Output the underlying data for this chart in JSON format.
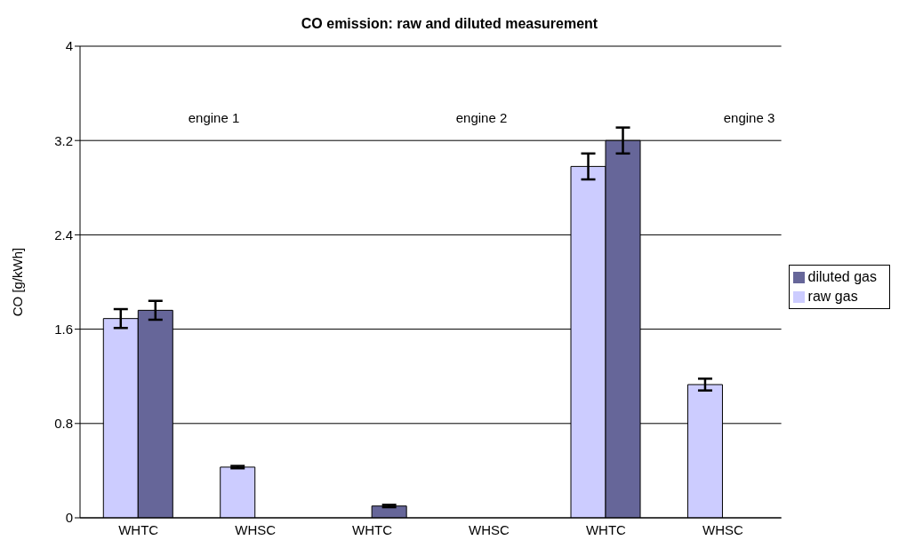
{
  "chart_data": {
    "type": "bar",
    "title": "CO emission: raw and diluted measurement",
    "ylabel": "CO [g/kWh]",
    "categories": [
      "WHTC",
      "WHSC",
      "WHTC",
      "WHSC",
      "WHTC",
      "WHSC"
    ],
    "series": [
      {
        "name": "raw gas",
        "color": "#ccccff",
        "values": [
          1.69,
          0.43,
          null,
          null,
          2.98,
          1.13
        ],
        "errors": [
          0.08,
          0.01,
          null,
          null,
          0.11,
          0.05
        ]
      },
      {
        "name": "diluted gas",
        "color": "#666699",
        "values": [
          1.76,
          null,
          0.1,
          null,
          3.2,
          null
        ],
        "errors": [
          0.08,
          null,
          0.01,
          null,
          0.11,
          null
        ]
      }
    ],
    "ylim": [
      0,
      4
    ],
    "yticks": [
      0,
      0.8,
      1.6,
      2.4,
      3.2,
      4
    ],
    "grid": "y",
    "legend": "right",
    "annotations": [
      "engine 1",
      "engine 2",
      "engine 3"
    ]
  }
}
